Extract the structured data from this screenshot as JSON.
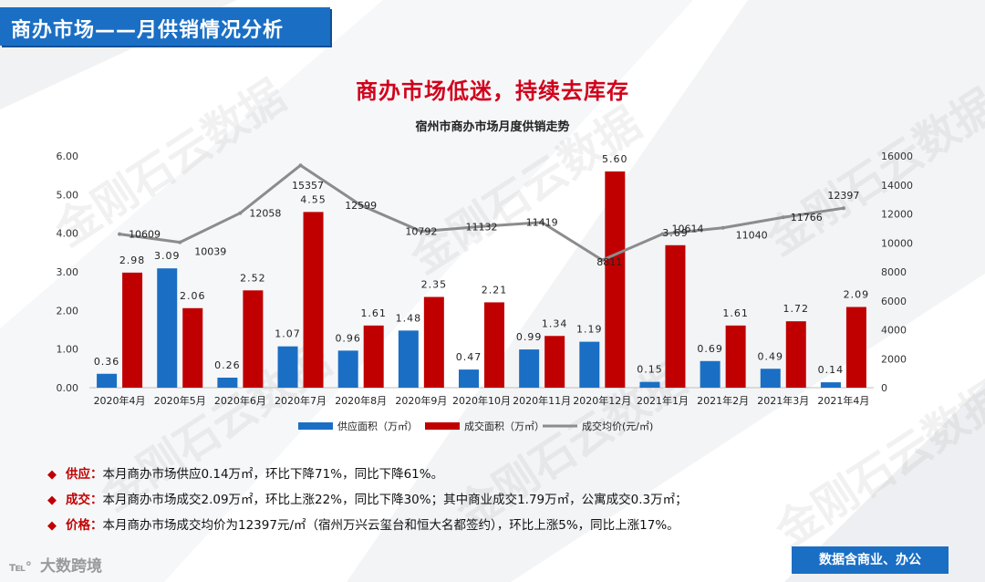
{
  "header": {
    "title": "商办市场——月供销情况分析"
  },
  "headline": "商办市场低迷，持续去库存",
  "watermark": "金刚石云数据",
  "chart_data": {
    "type": "bar",
    "title": "宿州市商办市场月度供销走势",
    "categories": [
      "2020年4月",
      "2020年5月",
      "2020年6月",
      "2020年7月",
      "2020年8月",
      "2020年9月",
      "2020年10月",
      "2020年11月",
      "2020年12月",
      "2021年1月",
      "2021年2月",
      "2021年3月",
      "2021年4月"
    ],
    "series": [
      {
        "name": "供应面积（万㎡）",
        "type": "bar",
        "axis": "left",
        "color": "#1a6fc4",
        "values": [
          0.36,
          3.09,
          0.26,
          1.07,
          0.96,
          1.48,
          0.47,
          0.99,
          1.19,
          0.15,
          0.69,
          0.49,
          0.14
        ],
        "labels": [
          "0.36",
          "3.09",
          "0.26",
          "1.07",
          "0.96",
          "1.48",
          "0.47",
          "0.99",
          "1.19",
          "0.15",
          "0.69",
          "0.49",
          "0.14"
        ]
      },
      {
        "name": "成交面积（万㎡）",
        "type": "bar",
        "axis": "left",
        "color": "#c00000",
        "values": [
          2.98,
          2.06,
          2.52,
          4.55,
          1.61,
          2.35,
          2.21,
          1.34,
          5.6,
          3.69,
          1.61,
          1.72,
          2.09
        ],
        "labels": [
          "2.98",
          "2.06",
          "2.52",
          "4.55",
          "1.61",
          "2.35",
          "2.21",
          "1.34",
          "5.60",
          "3.69",
          "1.61",
          "1.72",
          "2.09"
        ]
      },
      {
        "name": "成交均价(元/㎡)",
        "type": "line",
        "axis": "right",
        "color": "#8c8c8c",
        "values": [
          10609,
          10039,
          12058,
          15357,
          12599,
          10792,
          11132,
          11419,
          8811,
          10614,
          11040,
          11766,
          12397
        ],
        "labels": [
          "10609",
          "10039",
          "12058",
          "15357",
          "12599",
          "10792",
          "11132",
          "11419",
          "8811",
          "10614",
          "11040",
          "11766",
          "12397"
        ]
      }
    ],
    "y_left": {
      "min": 0,
      "max": 6,
      "ticks": [
        "0.00",
        "1.00",
        "2.00",
        "3.00",
        "4.00",
        "5.00",
        "6.00"
      ]
    },
    "y_right": {
      "min": 0,
      "max": 16000,
      "ticks": [
        "0",
        "2000",
        "4000",
        "6000",
        "8000",
        "10000",
        "12000",
        "14000",
        "16000"
      ]
    },
    "legend": "bottom"
  },
  "bullets": [
    {
      "label": "供应：",
      "text": "本月商办市场供应0.14万㎡，环比下降71%，同比下降61%。"
    },
    {
      "label": "成交：",
      "text": "本月商办市场成交2.09万㎡，环比上涨22%，同比下降30%；其中商业成交1.79万㎡，公寓成交0.3万㎡；"
    },
    {
      "label": "价格：",
      "text": "本月商办市场成交均价为12397元/㎡（宿州万兴云玺台和恒大名都签约），环比上涨5%，同比上涨17%。"
    }
  ],
  "footer": {
    "logo_text": "大数跨境",
    "note": "数据含商业、办公"
  },
  "colors": {
    "accent": "#1a6fc4",
    "red": "#c00000",
    "line": "#8c8c8c"
  }
}
